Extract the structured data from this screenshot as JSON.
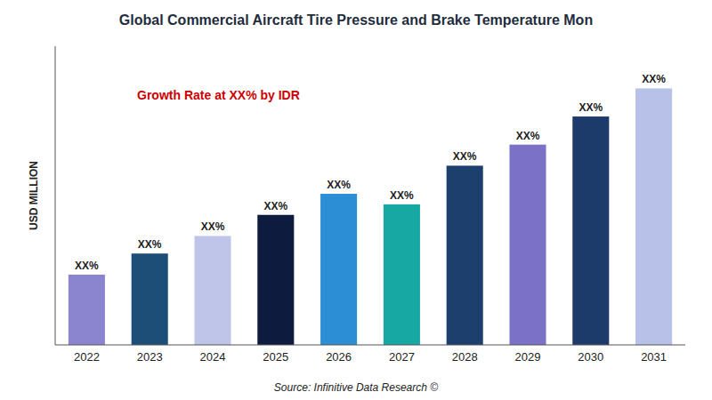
{
  "chart_data": {
    "type": "bar",
    "title": "Global Commercial Aircraft Tire Pressure and Brake Temperature Mon",
    "ylabel": "USD MILLION",
    "annotations": [
      "Growth Rate at XX% by IDR"
    ],
    "source": "Source: Infinitive Data Research ©",
    "categories": [
      "2022",
      "2023",
      "2024",
      "2025",
      "2026",
      "2027",
      "2028",
      "2029",
      "2030",
      "2031"
    ],
    "values": [
      20,
      26,
      31,
      37,
      43,
      40,
      51,
      57,
      65,
      73
    ],
    "value_labels": [
      "XX%",
      "XX%",
      "XX%",
      "XX%",
      "XX%",
      "XX%",
      "XX%",
      "XX%",
      "XX%",
      "XX%"
    ],
    "data_labels": true,
    "colors": [
      "#8B85D0",
      "#1C4E78",
      "#BFC5E8",
      "#0D1B3E",
      "#2C8FD6",
      "#18A8A4",
      "#1C3F6E",
      "#7B72C8",
      "#1C3A6A",
      "#B8C2E8"
    ],
    "ylim": [
      0,
      85
    ],
    "grid": false,
    "tick_labels": "x"
  }
}
